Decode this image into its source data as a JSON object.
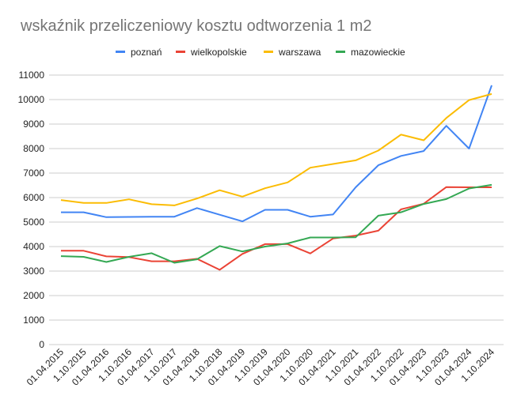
{
  "chart_data": {
    "type": "line",
    "title": "wskaźnik przeliczeniowy kosztu odtworzenia 1 m2",
    "xlabel": "",
    "ylabel": "",
    "ylim": [
      0,
      11000
    ],
    "yticks": [
      0,
      1000,
      2000,
      3000,
      4000,
      5000,
      6000,
      7000,
      8000,
      9000,
      10000,
      11000
    ],
    "grid": true,
    "legend_position": "top",
    "categories": [
      "01.04.2015",
      "1.10.2015",
      "01.04.2016",
      "1.10.2016",
      "01.04.2017",
      "1.10.2017",
      "01.04.2018",
      "1.10.2018",
      "01.04.2019",
      "1.10.2019",
      "01.04.2020",
      "1.10.2020",
      "01.04.2021",
      "1.10.2021",
      "01.04.2022",
      "1.10.2022",
      "01.04.2023",
      "1.10.2023",
      "01.04.2024",
      "1.10.2024"
    ],
    "series": [
      {
        "name": "poznań",
        "color": "#4285F4",
        "values": [
          5400,
          5400,
          5200,
          5210,
          5220,
          5220,
          5570,
          5300,
          5030,
          5500,
          5500,
          5220,
          5310,
          6420,
          7320,
          7700,
          7900,
          8930,
          8000,
          10580
        ]
      },
      {
        "name": "wielkopolskie",
        "color": "#EA4335",
        "values": [
          3830,
          3830,
          3600,
          3570,
          3400,
          3400,
          3500,
          3050,
          3700,
          4100,
          4100,
          3720,
          4330,
          4450,
          4650,
          5520,
          5750,
          6430,
          6420,
          6420
        ]
      },
      {
        "name": "warszawa",
        "color": "#FBBC04",
        "values": [
          5900,
          5780,
          5780,
          5930,
          5730,
          5680,
          5960,
          6300,
          6040,
          6380,
          6620,
          7220,
          7370,
          7520,
          7920,
          8570,
          8340,
          9250,
          9980,
          10230
        ]
      },
      {
        "name": "mazowieckie",
        "color": "#34A853",
        "values": [
          3610,
          3580,
          3370,
          3580,
          3730,
          3340,
          3480,
          4020,
          3800,
          4000,
          4130,
          4370,
          4370,
          4380,
          5260,
          5400,
          5740,
          5940,
          6370,
          6520
        ]
      }
    ]
  }
}
